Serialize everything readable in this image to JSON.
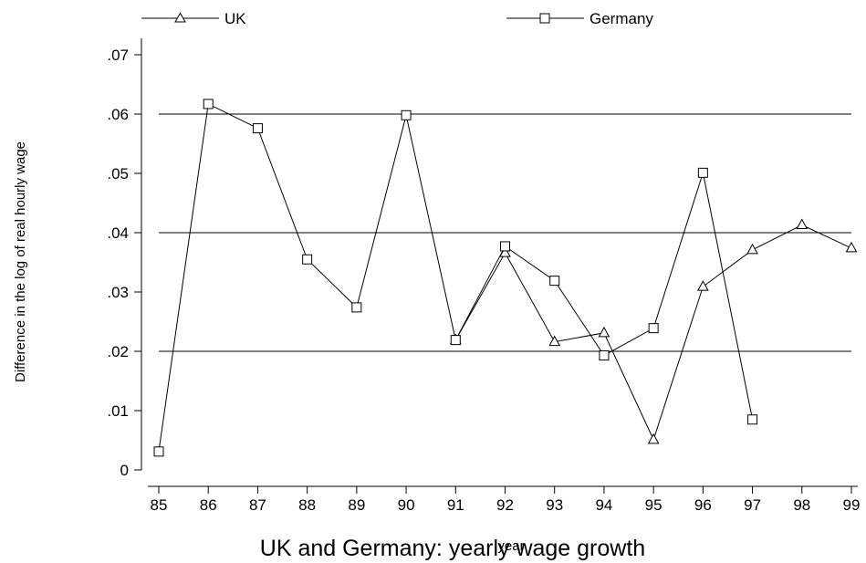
{
  "chart_data": {
    "type": "line",
    "title": "UK and Germany: yearly wage growth",
    "xlabel": "year",
    "ylabel": "Difference in the log of real hourly wage",
    "x": [
      85,
      86,
      87,
      88,
      89,
      90,
      91,
      92,
      93,
      94,
      95,
      96,
      97,
      98,
      99
    ],
    "x_tick_labels": [
      "85",
      "86",
      "87",
      "88",
      "89",
      "90",
      "91",
      "92",
      "93",
      "94",
      "95",
      "96",
      "97",
      "98",
      "99"
    ],
    "y_ticks": [
      0,
      0.01,
      0.02,
      0.03,
      0.04,
      0.05,
      0.06,
      0.07
    ],
    "y_tick_labels": [
      "0",
      ".01",
      ".02",
      ".03",
      ".04",
      ".05",
      ".06",
      ".07"
    ],
    "xlim": [
      85,
      99
    ],
    "ylim": [
      0,
      0.07
    ],
    "reference_lines": [
      0.02,
      0.04,
      0.06
    ],
    "legend_position": "top",
    "series": [
      {
        "name": "UK",
        "marker": "triangle",
        "points": [
          [
            91,
            0.0219
          ],
          [
            92,
            0.0366
          ],
          [
            93,
            0.0216
          ],
          [
            94,
            0.0231
          ],
          [
            95,
            0.0051
          ],
          [
            96,
            0.0309
          ],
          [
            97,
            0.0371
          ],
          [
            98,
            0.0413
          ],
          [
            99,
            0.0374
          ]
        ]
      },
      {
        "name": "Germany",
        "marker": "square",
        "points": [
          [
            85,
            0.0031
          ],
          [
            86,
            0.0617
          ],
          [
            87,
            0.0576
          ],
          [
            88,
            0.0355
          ],
          [
            89,
            0.0274
          ],
          [
            90,
            0.0598
          ],
          [
            91,
            0.0219
          ],
          [
            92,
            0.0377
          ],
          [
            93,
            0.0319
          ],
          [
            94,
            0.0193
          ],
          [
            95,
            0.0239
          ],
          [
            96,
            0.0501
          ],
          [
            97,
            0.0085
          ]
        ]
      }
    ]
  }
}
